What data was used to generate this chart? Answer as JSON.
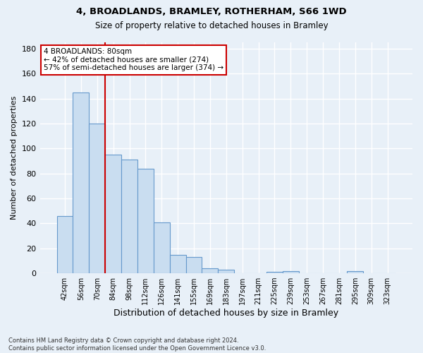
{
  "title": "4, BROADLANDS, BRAMLEY, ROTHERHAM, S66 1WD",
  "subtitle": "Size of property relative to detached houses in Bramley",
  "xlabel": "Distribution of detached houses by size in Bramley",
  "ylabel": "Number of detached properties",
  "categories": [
    "42sqm",
    "56sqm",
    "70sqm",
    "84sqm",
    "98sqm",
    "112sqm",
    "126sqm",
    "141sqm",
    "155sqm",
    "169sqm",
    "183sqm",
    "197sqm",
    "211sqm",
    "225sqm",
    "239sqm",
    "253sqm",
    "267sqm",
    "281sqm",
    "295sqm",
    "309sqm",
    "323sqm"
  ],
  "values": [
    46,
    145,
    120,
    95,
    91,
    84,
    41,
    15,
    13,
    4,
    3,
    0,
    0,
    1,
    2,
    0,
    0,
    0,
    2,
    0,
    0
  ],
  "bar_color": "#c9ddf0",
  "bar_edge_color": "#6699cc",
  "property_line_x": 2.5,
  "property_line_color": "#cc0000",
  "annotation_text": "4 BROADLANDS: 80sqm\n← 42% of detached houses are smaller (274)\n57% of semi-detached houses are larger (374) →",
  "annotation_box_color": "#ffffff",
  "annotation_box_edge_color": "#cc0000",
  "ylim": [
    0,
    185
  ],
  "yticks": [
    0,
    20,
    40,
    60,
    80,
    100,
    120,
    140,
    160,
    180
  ],
  "footnote": "Contains HM Land Registry data © Crown copyright and database right 2024.\nContains public sector information licensed under the Open Government Licence v3.0.",
  "background_color": "#e8f0f8",
  "grid_color": "#ffffff",
  "title_fontsize": 9.5,
  "subtitle_fontsize": 8.5,
  "ylabel_fontsize": 8,
  "xlabel_fontsize": 9,
  "tick_fontsize": 7,
  "annotation_fontsize": 7.5,
  "footnote_fontsize": 6
}
